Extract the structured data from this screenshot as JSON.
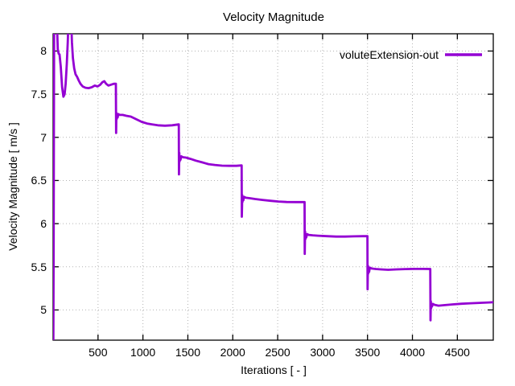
{
  "chart_data": {
    "type": "line",
    "title": "Velocity Magnitude",
    "xlabel": "Iterations [ - ]",
    "ylabel": "Velocity Magnitude [ m/s ]",
    "xlim": [
      0,
      4900
    ],
    "ylim": [
      4.65,
      8.2
    ],
    "xticks": [
      500,
      1000,
      1500,
      2000,
      2500,
      3000,
      3500,
      4000,
      4500
    ],
    "yticks": [
      5,
      5.5,
      6,
      6.5,
      7,
      7.5,
      8
    ],
    "grid": "dotted",
    "grid_color": "#b3b3b3",
    "border_color": "#000000",
    "legend_position": "top-right-inside",
    "series": [
      {
        "name": "voluteExtension-out",
        "color": "#9400d3",
        "points": [
          [
            3,
            4.6
          ],
          [
            6,
            5.8
          ],
          [
            9,
            7.2
          ],
          [
            12,
            8.4
          ],
          [
            40,
            8.4
          ],
          [
            52,
            8.02
          ],
          [
            62,
            7.97
          ],
          [
            72,
            7.96
          ],
          [
            85,
            7.82
          ],
          [
            100,
            7.58
          ],
          [
            115,
            7.47
          ],
          [
            128,
            7.5
          ],
          [
            140,
            7.62
          ],
          [
            152,
            7.85
          ],
          [
            163,
            8.1
          ],
          [
            172,
            8.4
          ],
          [
            200,
            8.4
          ],
          [
            210,
            8.1
          ],
          [
            220,
            7.92
          ],
          [
            235,
            7.8
          ],
          [
            250,
            7.73
          ],
          [
            268,
            7.7
          ],
          [
            285,
            7.66
          ],
          [
            305,
            7.62
          ],
          [
            330,
            7.59
          ],
          [
            360,
            7.575
          ],
          [
            395,
            7.57
          ],
          [
            430,
            7.58
          ],
          [
            465,
            7.6
          ],
          [
            495,
            7.59
          ],
          [
            525,
            7.61
          ],
          [
            550,
            7.64
          ],
          [
            570,
            7.65
          ],
          [
            590,
            7.62
          ],
          [
            615,
            7.6
          ],
          [
            645,
            7.61
          ],
          [
            675,
            7.62
          ],
          [
            699,
            7.62
          ],
          [
            701,
            7.05
          ],
          [
            703,
            7.18
          ],
          [
            705,
            7.28
          ],
          [
            708,
            7.21
          ],
          [
            712,
            7.26
          ],
          [
            718,
            7.23
          ],
          [
            726,
            7.27
          ],
          [
            742,
            7.26
          ],
          [
            775,
            7.26
          ],
          [
            815,
            7.25
          ],
          [
            865,
            7.24
          ],
          [
            925,
            7.21
          ],
          [
            985,
            7.18
          ],
          [
            1045,
            7.16
          ],
          [
            1105,
            7.15
          ],
          [
            1165,
            7.14
          ],
          [
            1245,
            7.135
          ],
          [
            1325,
            7.14
          ],
          [
            1365,
            7.145
          ],
          [
            1399,
            7.15
          ],
          [
            1401,
            6.57
          ],
          [
            1403,
            6.7
          ],
          [
            1405,
            6.82
          ],
          [
            1408,
            6.72
          ],
          [
            1412,
            6.78
          ],
          [
            1418,
            6.74
          ],
          [
            1426,
            6.78
          ],
          [
            1445,
            6.77
          ],
          [
            1480,
            6.765
          ],
          [
            1530,
            6.75
          ],
          [
            1590,
            6.73
          ],
          [
            1660,
            6.71
          ],
          [
            1730,
            6.69
          ],
          [
            1800,
            6.68
          ],
          [
            1880,
            6.672
          ],
          [
            1960,
            6.67
          ],
          [
            2040,
            6.67
          ],
          [
            2099,
            6.675
          ],
          [
            2101,
            6.08
          ],
          [
            2103,
            6.2
          ],
          [
            2105,
            6.33
          ],
          [
            2108,
            6.25
          ],
          [
            2112,
            6.31
          ],
          [
            2118,
            6.27
          ],
          [
            2126,
            6.31
          ],
          [
            2145,
            6.3
          ],
          [
            2190,
            6.295
          ],
          [
            2250,
            6.285
          ],
          [
            2330,
            6.275
          ],
          [
            2420,
            6.265
          ],
          [
            2510,
            6.256
          ],
          [
            2600,
            6.251
          ],
          [
            2700,
            6.25
          ],
          [
            2799,
            6.25
          ],
          [
            2801,
            5.65
          ],
          [
            2803,
            5.78
          ],
          [
            2805,
            5.91
          ],
          [
            2808,
            5.82
          ],
          [
            2812,
            5.88
          ],
          [
            2818,
            5.84
          ],
          [
            2826,
            5.88
          ],
          [
            2845,
            5.87
          ],
          [
            2890,
            5.865
          ],
          [
            2950,
            5.86
          ],
          [
            3050,
            5.855
          ],
          [
            3150,
            5.85
          ],
          [
            3250,
            5.85
          ],
          [
            3350,
            5.853
          ],
          [
            3450,
            5.855
          ],
          [
            3499,
            5.855
          ],
          [
            3501,
            5.24
          ],
          [
            3503,
            5.38
          ],
          [
            3505,
            5.51
          ],
          [
            3508,
            5.42
          ],
          [
            3512,
            5.48
          ],
          [
            3518,
            5.44
          ],
          [
            3526,
            5.49
          ],
          [
            3545,
            5.48
          ],
          [
            3590,
            5.475
          ],
          [
            3650,
            5.47
          ],
          [
            3730,
            5.465
          ],
          [
            3820,
            5.47
          ],
          [
            3920,
            5.474
          ],
          [
            4020,
            5.476
          ],
          [
            4120,
            5.476
          ],
          [
            4199,
            5.475
          ],
          [
            4201,
            4.88
          ],
          [
            4203,
            5.0
          ],
          [
            4205,
            5.1
          ],
          [
            4208,
            5.02
          ],
          [
            4212,
            5.07
          ],
          [
            4218,
            5.04
          ],
          [
            4226,
            5.07
          ],
          [
            4245,
            5.06
          ],
          [
            4290,
            5.05
          ],
          [
            4350,
            5.055
          ],
          [
            4450,
            5.065
          ],
          [
            4550,
            5.072
          ],
          [
            4650,
            5.078
          ],
          [
            4750,
            5.082
          ],
          [
            4850,
            5.087
          ],
          [
            4900,
            5.09
          ]
        ]
      }
    ]
  }
}
